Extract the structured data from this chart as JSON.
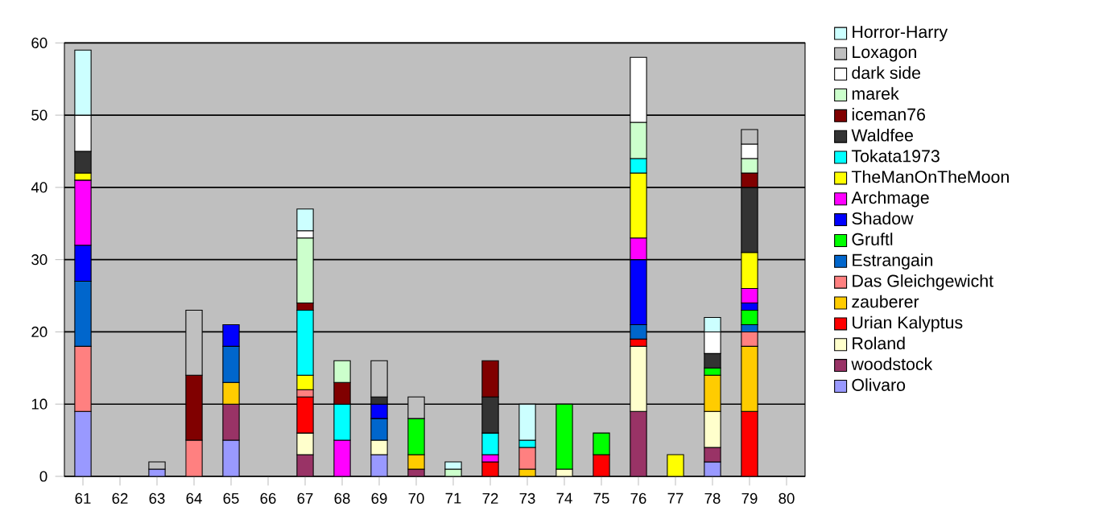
{
  "chart_data": {
    "type": "bar",
    "stacked": true,
    "grid": "y",
    "legend": "right",
    "categories": [
      "61",
      "62",
      "63",
      "64",
      "65",
      "66",
      "67",
      "68",
      "69",
      "70",
      "71",
      "72",
      "73",
      "74",
      "75",
      "76",
      "77",
      "78",
      "79",
      "80"
    ],
    "ylim": [
      0,
      60
    ],
    "yticks": [
      0,
      10,
      20,
      30,
      40,
      50,
      60
    ],
    "series": [
      {
        "name": "Olivaro",
        "color": "#9999ff",
        "values": [
          9,
          null,
          1,
          null,
          5,
          null,
          null,
          null,
          3,
          null,
          null,
          null,
          null,
          null,
          null,
          null,
          null,
          2,
          null,
          null
        ]
      },
      {
        "name": "woodstock",
        "color": "#993366",
        "values": [
          null,
          null,
          null,
          null,
          5,
          null,
          3,
          null,
          null,
          1,
          null,
          null,
          null,
          null,
          null,
          9,
          null,
          2,
          null,
          null
        ]
      },
      {
        "name": "Roland",
        "color": "#ffffcc",
        "values": [
          null,
          null,
          null,
          null,
          null,
          null,
          3,
          null,
          2,
          null,
          null,
          null,
          null,
          1,
          null,
          9,
          null,
          5,
          null,
          null
        ]
      },
      {
        "name": "Urian Kalyptus",
        "color": "#ff0000",
        "values": [
          null,
          null,
          null,
          null,
          null,
          null,
          5,
          null,
          null,
          null,
          null,
          2,
          null,
          null,
          3,
          1,
          null,
          null,
          9,
          null
        ]
      },
      {
        "name": "zauberer",
        "color": "#ffcc00",
        "values": [
          null,
          null,
          null,
          null,
          3,
          null,
          null,
          null,
          null,
          2,
          null,
          null,
          1,
          null,
          null,
          null,
          null,
          5,
          9,
          null
        ]
      },
      {
        "name": "Das Gleichgewicht",
        "color": "#ff8080",
        "values": [
          9,
          null,
          null,
          5,
          null,
          null,
          1,
          null,
          null,
          null,
          null,
          null,
          3,
          null,
          null,
          null,
          null,
          null,
          2,
          null
        ]
      },
      {
        "name": "Estrangain",
        "color": "#0066cc",
        "values": [
          9,
          null,
          null,
          null,
          5,
          null,
          null,
          null,
          3,
          null,
          null,
          null,
          null,
          null,
          null,
          2,
          null,
          null,
          1,
          null
        ]
      },
      {
        "name": "Gruftl",
        "color": "#00ff00",
        "values": [
          null,
          null,
          null,
          null,
          null,
          null,
          null,
          null,
          null,
          5,
          null,
          null,
          null,
          9,
          3,
          null,
          null,
          1,
          2,
          null
        ]
      },
      {
        "name": "Shadow",
        "color": "#0000ff",
        "values": [
          5,
          null,
          null,
          null,
          3,
          null,
          null,
          null,
          2,
          null,
          null,
          null,
          null,
          null,
          null,
          9,
          null,
          null,
          1,
          null
        ]
      },
      {
        "name": "Archmage",
        "color": "#ff00ff",
        "values": [
          9,
          null,
          null,
          null,
          null,
          null,
          null,
          5,
          null,
          null,
          null,
          1,
          null,
          null,
          null,
          3,
          null,
          null,
          2,
          null
        ]
      },
      {
        "name": "TheManOnTheMoon",
        "color": "#ffff00",
        "values": [
          1,
          null,
          null,
          null,
          null,
          null,
          2,
          null,
          null,
          null,
          null,
          null,
          null,
          null,
          null,
          9,
          3,
          null,
          5,
          null
        ]
      },
      {
        "name": "Tokata1973",
        "color": "#00ffff",
        "values": [
          null,
          null,
          null,
          null,
          null,
          null,
          9,
          5,
          null,
          null,
          null,
          3,
          1,
          null,
          null,
          2,
          null,
          null,
          null,
          null
        ]
      },
      {
        "name": "Waldfee",
        "color": "#333333",
        "values": [
          3,
          null,
          null,
          null,
          null,
          null,
          null,
          null,
          1,
          null,
          null,
          5,
          null,
          null,
          null,
          null,
          null,
          2,
          9,
          null
        ]
      },
      {
        "name": "iceman76",
        "color": "#800000",
        "values": [
          null,
          null,
          null,
          9,
          null,
          null,
          1,
          3,
          null,
          null,
          null,
          5,
          null,
          null,
          null,
          null,
          null,
          null,
          2,
          null
        ]
      },
      {
        "name": "marek",
        "color": "#ccffcc",
        "values": [
          null,
          null,
          null,
          null,
          null,
          null,
          9,
          3,
          null,
          null,
          1,
          null,
          null,
          null,
          null,
          5,
          null,
          null,
          2,
          null
        ]
      },
      {
        "name": "dark side",
        "color": "#ffffff",
        "values": [
          5,
          null,
          null,
          null,
          null,
          null,
          1,
          null,
          null,
          null,
          null,
          null,
          null,
          null,
          null,
          9,
          null,
          3,
          2,
          null
        ]
      },
      {
        "name": "Loxagon",
        "color": "#c0c0c0",
        "values": [
          null,
          null,
          1,
          9,
          null,
          null,
          null,
          null,
          5,
          3,
          null,
          null,
          null,
          null,
          null,
          null,
          null,
          null,
          2,
          null
        ]
      },
      {
        "name": "Horror-Harry",
        "color": "#ccffff",
        "values": [
          9,
          null,
          null,
          null,
          null,
          null,
          3,
          null,
          null,
          null,
          1,
          null,
          5,
          null,
          null,
          null,
          null,
          2,
          null,
          null
        ]
      }
    ]
  }
}
